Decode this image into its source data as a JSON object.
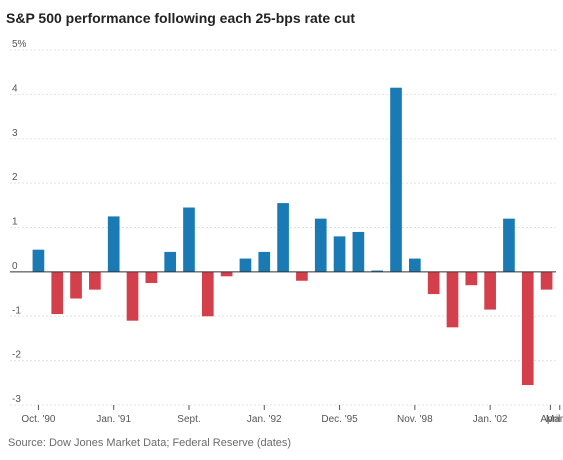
{
  "chart_data": {
    "type": "bar",
    "title": "S&P 500 performance following each 25-bps rate cut",
    "source": "Source: Dow Jones Market Data; Federal Reserve (dates)",
    "ylim": [
      -3,
      5
    ],
    "y_ticks": [
      {
        "value": 5,
        "label": "5%"
      },
      {
        "value": 4,
        "label": "4"
      },
      {
        "value": 3,
        "label": "3"
      },
      {
        "value": 2,
        "label": "2"
      },
      {
        "value": 1,
        "label": "1"
      },
      {
        "value": 0,
        "label": "0"
      },
      {
        "value": -1,
        "label": "-1"
      },
      {
        "value": -2,
        "label": "-2"
      },
      {
        "value": -3,
        "label": "-3"
      }
    ],
    "x_ticks": [
      {
        "index": 0.5,
        "label": "Oct. '90"
      },
      {
        "index": 4.5,
        "label": "Jan. '91"
      },
      {
        "index": 8.5,
        "label": "Sept."
      },
      {
        "index": 12.5,
        "label": "Jan. '92"
      },
      {
        "index": 16.5,
        "label": "Dec. '95"
      },
      {
        "index": 20.5,
        "label": "Nov. '98"
      },
      {
        "index": 24.5,
        "label": "Jan. '02"
      },
      {
        "index": 27.7,
        "label": "April"
      },
      {
        "index": 28.2,
        "label": "March"
      }
    ],
    "values": [
      0.5,
      -0.95,
      -0.6,
      -0.4,
      1.25,
      -1.1,
      -0.25,
      0.45,
      1.45,
      -1.0,
      -0.1,
      0.3,
      0.45,
      1.55,
      -0.2,
      1.2,
      0.8,
      0.9,
      0.03,
      4.15,
      0.3,
      -0.5,
      -1.25,
      -0.3,
      -0.85,
      1.2,
      -2.55,
      -0.4
    ],
    "positive_color": "#1a7ab4",
    "negative_color": "#d33f4b",
    "grid": true
  }
}
